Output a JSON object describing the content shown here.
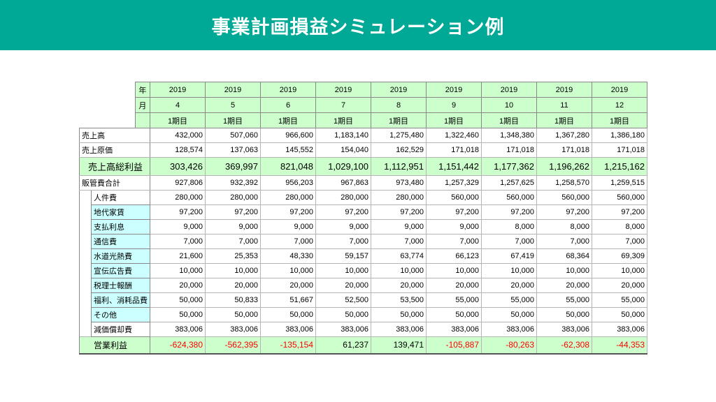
{
  "title": "事業計画損益シミュレーション例",
  "header": {
    "year_label": "年",
    "month_label": "月",
    "years": [
      "2019",
      "2019",
      "2019",
      "2019",
      "2019",
      "2019",
      "2019",
      "2019",
      "2019"
    ],
    "months": [
      "4",
      "5",
      "6",
      "7",
      "8",
      "9",
      "10",
      "11",
      "12"
    ],
    "periods": [
      "1期目",
      "1期目",
      "1期目",
      "1期目",
      "1期目",
      "1期目",
      "1期目",
      "1期目",
      "1期目"
    ]
  },
  "rows": [
    {
      "label": "売上高",
      "values": [
        "432,000",
        "507,060",
        "966,600",
        "1,183,140",
        "1,275,480",
        "1,322,460",
        "1,348,380",
        "1,367,280",
        "1,386,180"
      ]
    },
    {
      "label": "売上原価",
      "values": [
        "128,574",
        "137,063",
        "145,552",
        "154,040",
        "162,529",
        "171,018",
        "171,018",
        "171,018",
        "171,018"
      ]
    },
    {
      "label": "売上高総利益",
      "values": [
        "303,426",
        "369,997",
        "821,048",
        "1,029,100",
        "1,112,951",
        "1,151,442",
        "1,177,362",
        "1,196,262",
        "1,215,162"
      ]
    },
    {
      "label": "販管費合計",
      "values": [
        "927,806",
        "932,392",
        "956,203",
        "967,863",
        "973,480",
        "1,257,329",
        "1,257,625",
        "1,258,570",
        "1,259,515"
      ]
    },
    {
      "label": "人件費",
      "values": [
        "280,000",
        "280,000",
        "280,000",
        "280,000",
        "280,000",
        "560,000",
        "560,000",
        "560,000",
        "560,000"
      ]
    },
    {
      "label": "地代家賃",
      "values": [
        "97,200",
        "97,200",
        "97,200",
        "97,200",
        "97,200",
        "97,200",
        "97,200",
        "97,200",
        "97,200"
      ]
    },
    {
      "label": "支払利息",
      "values": [
        "9,000",
        "9,000",
        "9,000",
        "9,000",
        "9,000",
        "9,000",
        "8,000",
        "8,000",
        "8,000"
      ]
    },
    {
      "label": "通信費",
      "values": [
        "7,000",
        "7,000",
        "7,000",
        "7,000",
        "7,000",
        "7,000",
        "7,000",
        "7,000",
        "7,000"
      ]
    },
    {
      "label": "水道光熱費",
      "values": [
        "21,600",
        "25,353",
        "48,330",
        "59,157",
        "63,774",
        "66,123",
        "67,419",
        "68,364",
        "69,309"
      ]
    },
    {
      "label": "宣伝広告費",
      "values": [
        "10,000",
        "10,000",
        "10,000",
        "10,000",
        "10,000",
        "10,000",
        "10,000",
        "10,000",
        "10,000"
      ]
    },
    {
      "label": "税理士報酬",
      "values": [
        "20,000",
        "20,000",
        "20,000",
        "20,000",
        "20,000",
        "20,000",
        "20,000",
        "20,000",
        "20,000"
      ]
    },
    {
      "label": "福利、消耗品費",
      "values": [
        "50,000",
        "50,833",
        "51,667",
        "52,500",
        "53,500",
        "55,000",
        "55,000",
        "55,000",
        "55,000"
      ]
    },
    {
      "label": "その他",
      "values": [
        "50,000",
        "50,000",
        "50,000",
        "50,000",
        "50,000",
        "50,000",
        "50,000",
        "50,000",
        "50,000"
      ]
    },
    {
      "label": "減価償却費",
      "values": [
        "383,006",
        "383,006",
        "383,006",
        "383,006",
        "383,006",
        "383,006",
        "383,006",
        "383,006",
        "383,006"
      ]
    },
    {
      "label": "営業利益",
      "values": [
        "-624,380",
        "-562,395",
        "-135,154",
        "61,237",
        "139,471",
        "-105,887",
        "-80,263",
        "-62,308",
        "-44,353"
      ]
    }
  ],
  "colors": {
    "banner": "#00a896",
    "header_fill": "#ccffcc",
    "sub_fill": "#ccffff",
    "negative": "#ff0000"
  }
}
